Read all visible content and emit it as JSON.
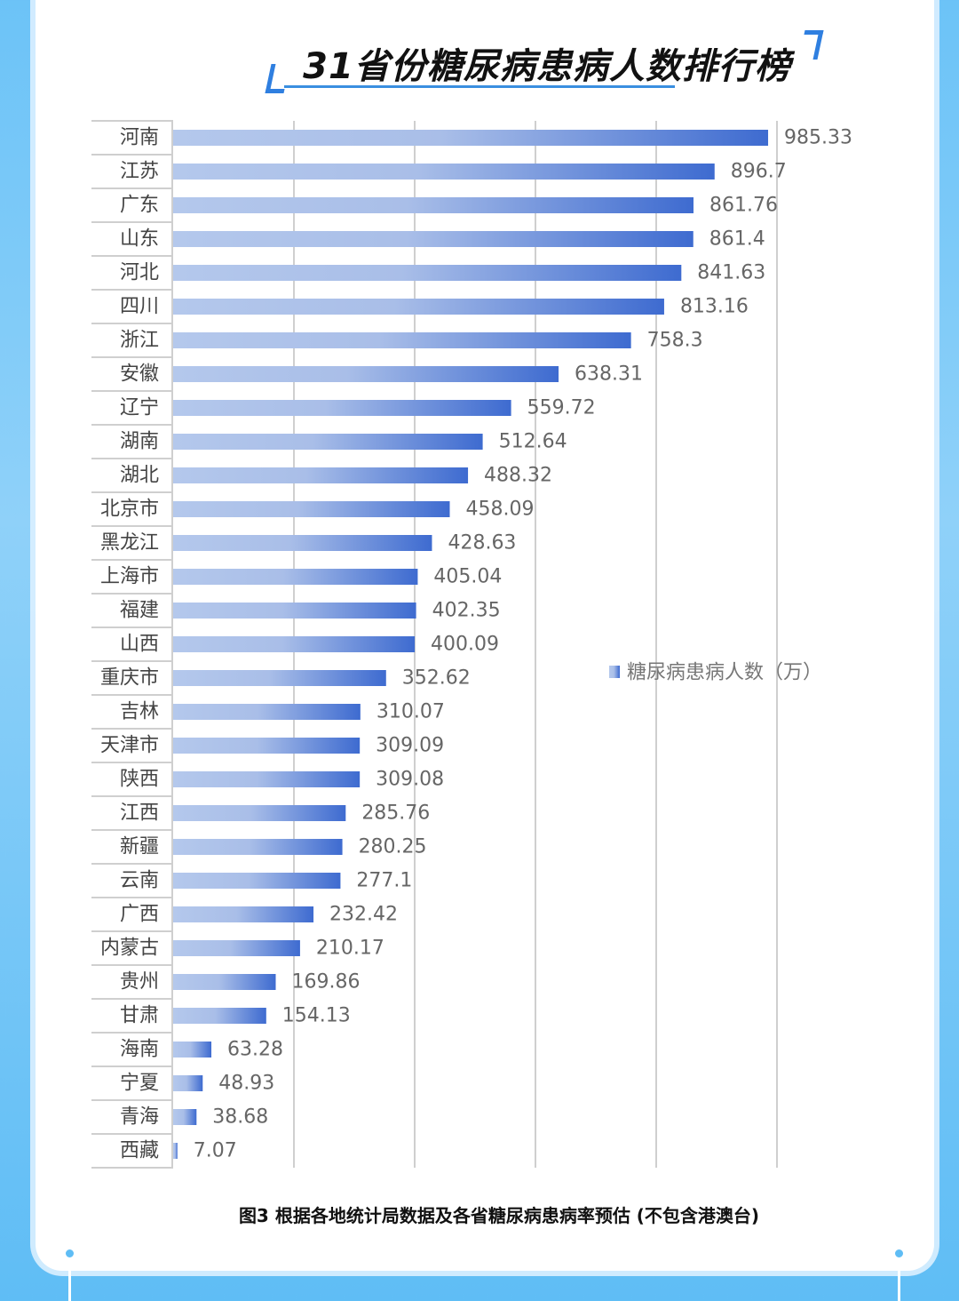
{
  "chart_data": {
    "type": "bar",
    "orientation": "horizontal",
    "title": "31省份糖尿病患病人数排行榜",
    "categories": [
      "河南",
      "江苏",
      "广东",
      "山东",
      "河北",
      "四川",
      "浙江",
      "安徽",
      "辽宁",
      "湖南",
      "湖北",
      "北京市",
      "黑龙江",
      "上海市",
      "福建",
      "山西",
      "重庆市",
      "吉林",
      "天津市",
      "陕西",
      "江西",
      "新疆",
      "云南",
      "广西",
      "内蒙古",
      "贵州",
      "甘肃",
      "海南",
      "宁夏",
      "青海",
      "西藏"
    ],
    "series": [
      {
        "name": "糖尿病患病人数（万）",
        "values": [
          985.33,
          896.7,
          861.76,
          861.4,
          841.63,
          813.16,
          758.3,
          638.31,
          559.72,
          512.64,
          488.32,
          458.09,
          428.63,
          405.04,
          402.35,
          400.09,
          352.62,
          310.07,
          309.09,
          309.08,
          285.76,
          280.25,
          277.1,
          232.42,
          210.17,
          169.86,
          154.13,
          63.28,
          48.93,
          38.68,
          7.07
        ]
      }
    ],
    "value_labels": [
      "985.33",
      "896.7",
      "861.76",
      "861.4",
      "841.63",
      "813.16",
      "758.3",
      "638.31",
      "559.72",
      "512.64",
      "488.32",
      "458.09",
      "428.63",
      "405.04",
      "402.35",
      "400.09",
      "352.62",
      "310.07",
      "309.09",
      "309.08",
      "285.76",
      "280.25",
      "277.1",
      "232.42",
      "210.17",
      "169.86",
      "154.13",
      "63.28",
      "48.93",
      "38.68",
      "7.07"
    ],
    "xlim": [
      0,
      1000
    ],
    "grid_step": 200,
    "grid": true,
    "legend": "right-middle",
    "legend_label": "糖尿病患病人数（万）",
    "bar_color_start": "#b4c8ec",
    "bar_color_end": "#3e6bd0"
  },
  "caption": "图3  根据各地统计局数据及各省糖尿病患病率预估 (不包含港澳台)"
}
